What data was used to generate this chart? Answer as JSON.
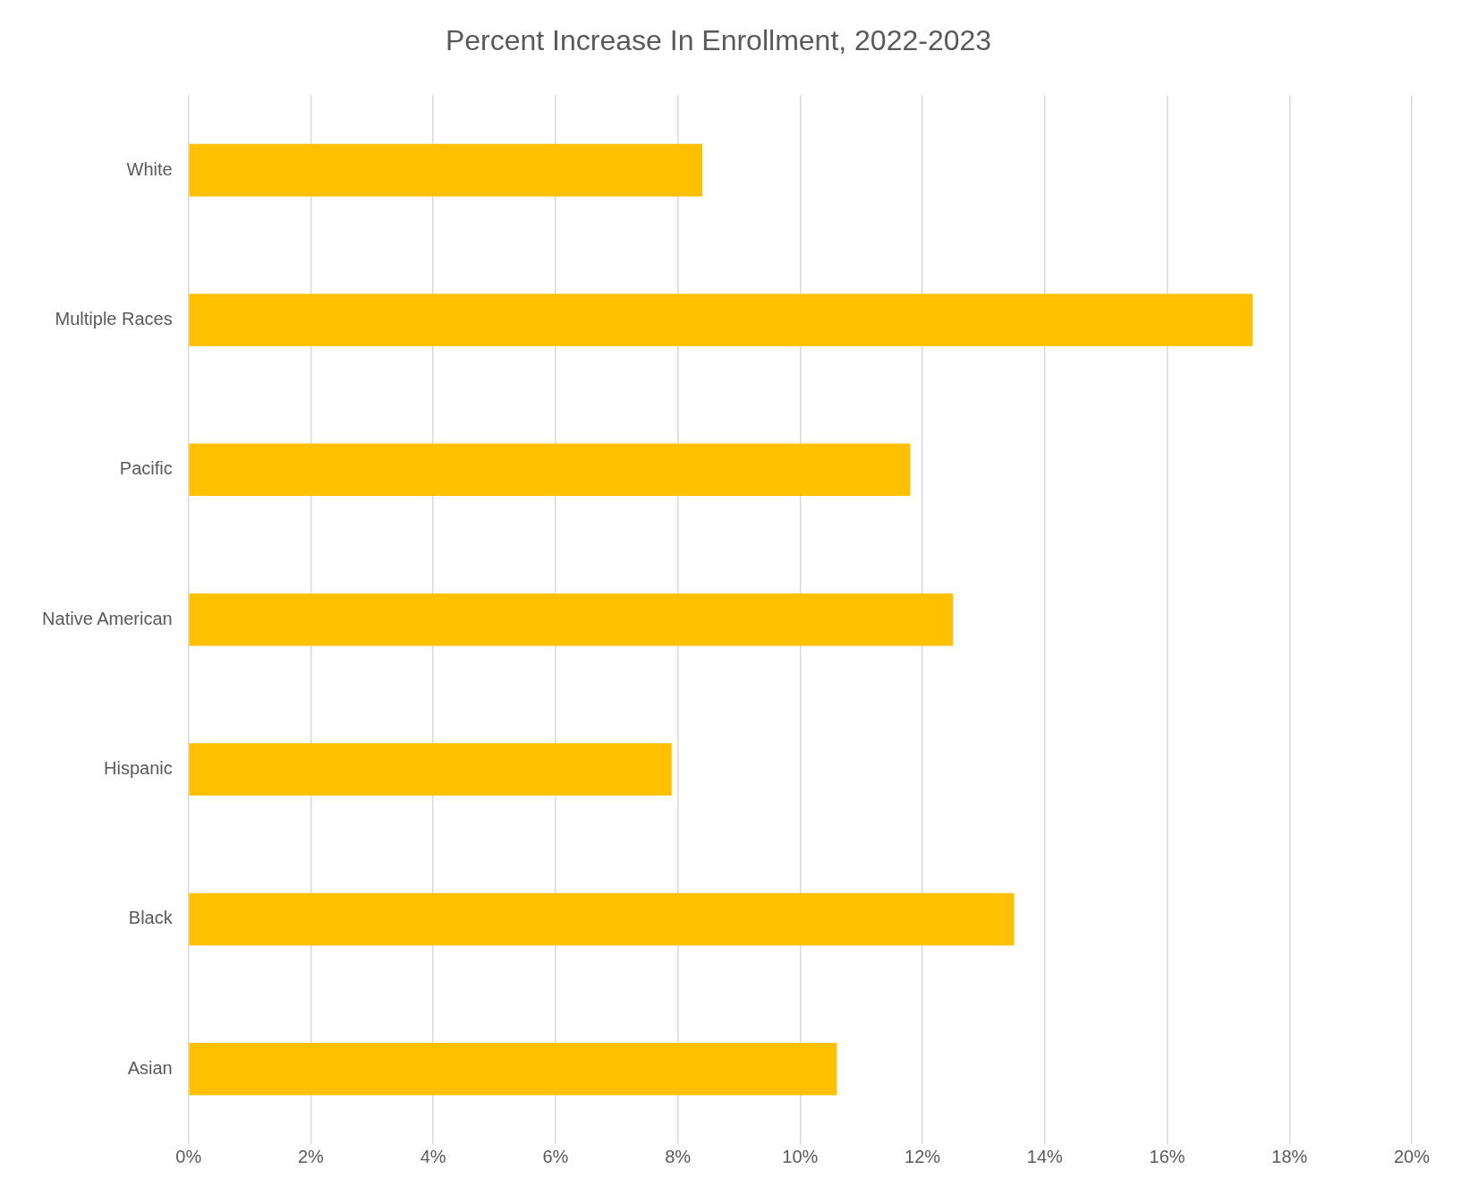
{
  "chart_data": {
    "type": "bar",
    "orientation": "horizontal",
    "title": "Percent Increase In Enrollment, 2022-2023",
    "categories": [
      "White",
      "Multiple Races",
      "Pacific",
      "Native American",
      "Hispanic",
      "Black",
      "Asian"
    ],
    "values": [
      8.4,
      17.4,
      11.8,
      12.5,
      7.9,
      13.5,
      10.6
    ],
    "color": "#ffc000",
    "xlim": [
      0,
      20
    ],
    "xticks": [
      {
        "value": 0,
        "label": "0%"
      },
      {
        "value": 2,
        "label": "2%"
      },
      {
        "value": 4,
        "label": "4%"
      },
      {
        "value": 6,
        "label": "6%"
      },
      {
        "value": 8,
        "label": "8%"
      },
      {
        "value": 10,
        "label": "10%"
      },
      {
        "value": 12,
        "label": "12%"
      },
      {
        "value": 14,
        "label": "14%"
      },
      {
        "value": 16,
        "label": "16%"
      },
      {
        "value": 18,
        "label": "18%"
      },
      {
        "value": 20,
        "label": "20%"
      }
    ],
    "grid": "x",
    "legend": false
  }
}
